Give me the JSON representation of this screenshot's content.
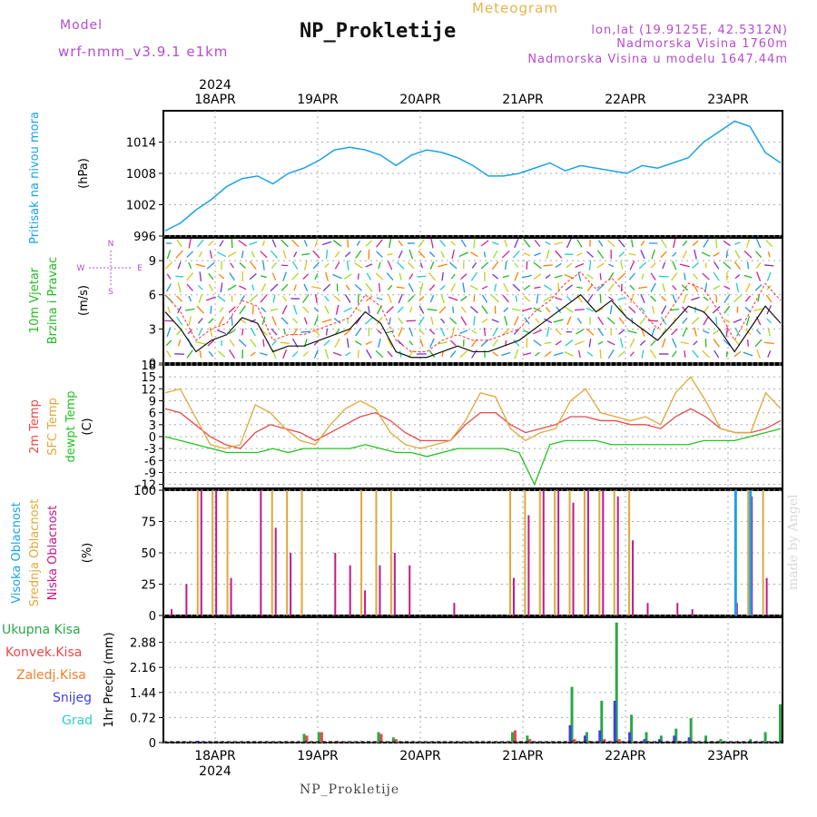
{
  "header": {
    "model_label": "Model",
    "model_run": "wrf-nmm_v3.9.1 e1km",
    "title": "NP_Prokletije",
    "meteogram": "Meteogram",
    "lonlat": "lon,lat (19.9125E, 42.5312N)",
    "altitude": "Nadmorska Visina 1760m",
    "altitude_model": "Nadmorska Visina u modelu 1647.44m",
    "made_by": "made by Angel",
    "footer": "NP_Prokletije"
  },
  "colors": {
    "pressure": "#1aa3e6",
    "wind_label": "#22bb22",
    "wind_speed": "#111111",
    "gust": "#ff3030",
    "temp2m": "#e84a4a",
    "sfc_temp": "#e0a83a",
    "dewpt": "#22c322",
    "high_cloud": "#1aa3e6",
    "mid_cloud": "#e0a83a",
    "low_cloud": "#c2188a",
    "precip_total": "#2aa84a",
    "precip_conv": "#e84a4a",
    "precip_frozen": "#f08030",
    "snow": "#4040e0",
    "graupel": "#33cccc",
    "compass": "#b44ccf"
  },
  "chart_data": [
    {
      "type": "line",
      "panel": "pressure",
      "ylabel_main": "Pritisak na nivou mora",
      "ylabel_unit": "(hPa)",
      "ylim": [
        996,
        1020
      ],
      "yticks": [
        996,
        1002,
        1008,
        1014
      ],
      "x_start": "17APR 12",
      "step_hours": 3,
      "series": [
        {
          "values": [
            997,
            998.5,
            1001,
            1003,
            1005.5,
            1007,
            1007.5,
            1006,
            1008,
            1009,
            1010.5,
            1012.5,
            1013,
            1012.5,
            1011.5,
            1009.5,
            1011.5,
            1012.5,
            1012,
            1011,
            1009.5,
            1007.5,
            1007.5,
            1008,
            1009,
            1010,
            1008.5,
            1009.5,
            1009,
            1008.5,
            1008,
            1009.5,
            1009,
            1010,
            1011,
            1014,
            1016,
            1018,
            1017,
            1012,
            1010
          ]
        }
      ]
    },
    {
      "type": "line",
      "panel": "wind",
      "ylabel_main": "10m Vjetar",
      "ylabel_main2": "Brzina i Pravac",
      "ylabel_unit": "(m/s)",
      "compass": [
        "N",
        "E",
        "S",
        "W"
      ],
      "ylim": [
        0,
        11
      ],
      "yticks": [
        0,
        3,
        6,
        9
      ],
      "series": [
        {
          "values": [
            4.5,
            3,
            1,
            2,
            2.5,
            4,
            3.5,
            1,
            1.5,
            1.5,
            2,
            2.5,
            3,
            4.5,
            3.5,
            1,
            0.5,
            0.5,
            1,
            1.5,
            1,
            1,
            1.5,
            2,
            3,
            4,
            5,
            6,
            4.5,
            5.5,
            4,
            3,
            2,
            3.5,
            5,
            4.5,
            3,
            1,
            3,
            5,
            3.5
          ]
        },
        {
          "values": [
            6,
            4.5,
            2,
            3,
            3.5,
            5.5,
            5,
            2,
            2.5,
            2.5,
            3,
            3.5,
            4,
            6,
            5,
            2,
            1,
            1,
            2,
            2.5,
            2,
            2,
            2.5,
            3,
            4.5,
            5.5,
            7,
            8,
            6.5,
            7.5,
            6,
            4.5,
            3,
            5,
            7,
            6.5,
            4.5,
            2,
            4.5,
            7,
            5.5
          ]
        }
      ]
    },
    {
      "type": "line",
      "panel": "temperature",
      "ylabel_main": "2m Temp",
      "ylabel_main2": "SFC Temp",
      "ylabel_main3": "dewpt Temp",
      "ylabel_unit": "(C)",
      "ylim": [
        -13,
        18
      ],
      "yticks": [
        -12,
        -9,
        -6,
        -3,
        0,
        3,
        6,
        9,
        12,
        15,
        18
      ],
      "series": [
        {
          "values": [
            7,
            6,
            3,
            0,
            -2,
            -3,
            1,
            3,
            2,
            1,
            -1,
            1,
            3,
            5,
            6,
            4,
            1,
            -1,
            -1,
            -1,
            3,
            6,
            6,
            3,
            1,
            2,
            3,
            5,
            5,
            4,
            4,
            3,
            3,
            2,
            5,
            7,
            5,
            2,
            1,
            1,
            2,
            4
          ]
        },
        {
          "values": [
            11,
            12,
            5,
            -2,
            -3,
            -2,
            8,
            6,
            2,
            -1,
            -2,
            3,
            7,
            9,
            7,
            1,
            -2,
            -3,
            -2,
            -1,
            4,
            11,
            10,
            2,
            -1,
            1,
            2,
            9,
            12,
            6,
            5,
            4,
            5,
            3,
            11,
            15,
            9,
            2,
            1,
            1,
            11,
            7
          ]
        },
        {
          "values": [
            0,
            -1,
            -2,
            -3,
            -4,
            -4,
            -4,
            -3,
            -4,
            -3,
            -3,
            -3,
            -3,
            -2,
            -3,
            -4,
            -4,
            -5,
            -4,
            -3,
            -3,
            -3,
            -3,
            -4,
            -12,
            -2,
            -1,
            -1,
            -1,
            -2,
            -2,
            -2,
            -2,
            -2,
            -2,
            -1,
            -1,
            -1,
            0,
            1,
            2
          ]
        }
      ]
    },
    {
      "type": "bar",
      "panel": "clouds",
      "ylabel_main": "Visoka Oblacnost",
      "ylabel_main2": "Srednja Oblacnost",
      "ylabel_main3": "Niska Oblacnost",
      "ylabel_unit": "(%)",
      "ylim": [
        0,
        100
      ],
      "yticks": [
        0,
        25,
        50,
        75,
        100
      ],
      "series": [
        {
          "name": "Srednja Oblacnost",
          "values": [
            0,
            0,
            100,
            100,
            100,
            0,
            0,
            100,
            100,
            100,
            0,
            0,
            0,
            100,
            100,
            100,
            0,
            0,
            0,
            0,
            0,
            0,
            0,
            100,
            100,
            100,
            100,
            100,
            100,
            100,
            100,
            100,
            0,
            0,
            0,
            0,
            0,
            0,
            0,
            100,
            100,
            0
          ]
        },
        {
          "name": "Niska Oblacnost",
          "values": [
            5,
            25,
            100,
            100,
            30,
            0,
            100,
            70,
            50,
            0,
            0,
            50,
            40,
            20,
            40,
            50,
            40,
            0,
            0,
            10,
            0,
            0,
            0,
            30,
            80,
            100,
            100,
            90,
            100,
            100,
            95,
            60,
            10,
            0,
            10,
            5,
            0,
            0,
            10,
            95,
            30,
            0
          ]
        },
        {
          "name": "Visoka Oblacnost",
          "values": [
            0,
            0,
            0,
            0,
            0,
            0,
            0,
            0,
            0,
            0,
            0,
            0,
            0,
            0,
            0,
            0,
            0,
            0,
            0,
            0,
            0,
            0,
            0,
            0,
            0,
            0,
            0,
            0,
            0,
            0,
            0,
            0,
            0,
            0,
            0,
            0,
            0,
            0,
            100,
            100,
            0,
            0
          ]
        }
      ]
    },
    {
      "type": "bar",
      "panel": "precip",
      "legend": [
        "Ukupna Kisa",
        "Konvek.Kisa",
        "Zaledj.Kisa",
        "Snijeg",
        "Grad"
      ],
      "ylabel_main": "1hr Precip (mm)",
      "ylim": [
        0,
        3.6
      ],
      "yticks": [
        0,
        0.72,
        1.44,
        2.16,
        2.88
      ],
      "xticks": [
        "18APR",
        "19APR",
        "20APR",
        "21APR",
        "22APR",
        "23APR"
      ],
      "x_year": "2024",
      "series": [
        {
          "name": "Ukupna Kisa",
          "values": [
            0,
            0,
            0,
            0,
            0,
            0,
            0,
            0,
            0,
            0.25,
            0.3,
            0,
            0,
            0,
            0.3,
            0.15,
            0,
            0,
            0,
            0,
            0,
            0,
            0,
            0.3,
            0.2,
            0,
            0,
            1.6,
            0.3,
            1.2,
            3.45,
            0.8,
            0.3,
            0.2,
            0.4,
            0.7,
            0.2,
            0.1,
            0,
            0.1,
            0.3,
            1.1
          ]
        },
        {
          "name": "Snijeg",
          "values": [
            0,
            0,
            0.05,
            0,
            0,
            0,
            0,
            0,
            0,
            0,
            0,
            0,
            0,
            0,
            0,
            0,
            0,
            0,
            0,
            0,
            0,
            0,
            0,
            0,
            0,
            0,
            0,
            0.5,
            0.2,
            0.35,
            1.2,
            0.3,
            0.1,
            0.1,
            0.2,
            0.15,
            0,
            0,
            0,
            0,
            0,
            0
          ]
        },
        {
          "name": "Konvek.Kisa",
          "values": [
            0,
            0,
            0,
            0,
            0,
            0,
            0,
            0,
            0,
            0.2,
            0.3,
            0.05,
            0,
            0,
            0.25,
            0.1,
            0,
            0,
            0,
            0,
            0,
            0,
            0,
            0.35,
            0.1,
            0,
            0,
            0.1,
            0.05,
            0.1,
            0.1,
            0,
            0,
            0,
            0.05,
            0,
            0,
            0,
            0,
            0,
            0,
            0
          ]
        }
      ]
    }
  ]
}
